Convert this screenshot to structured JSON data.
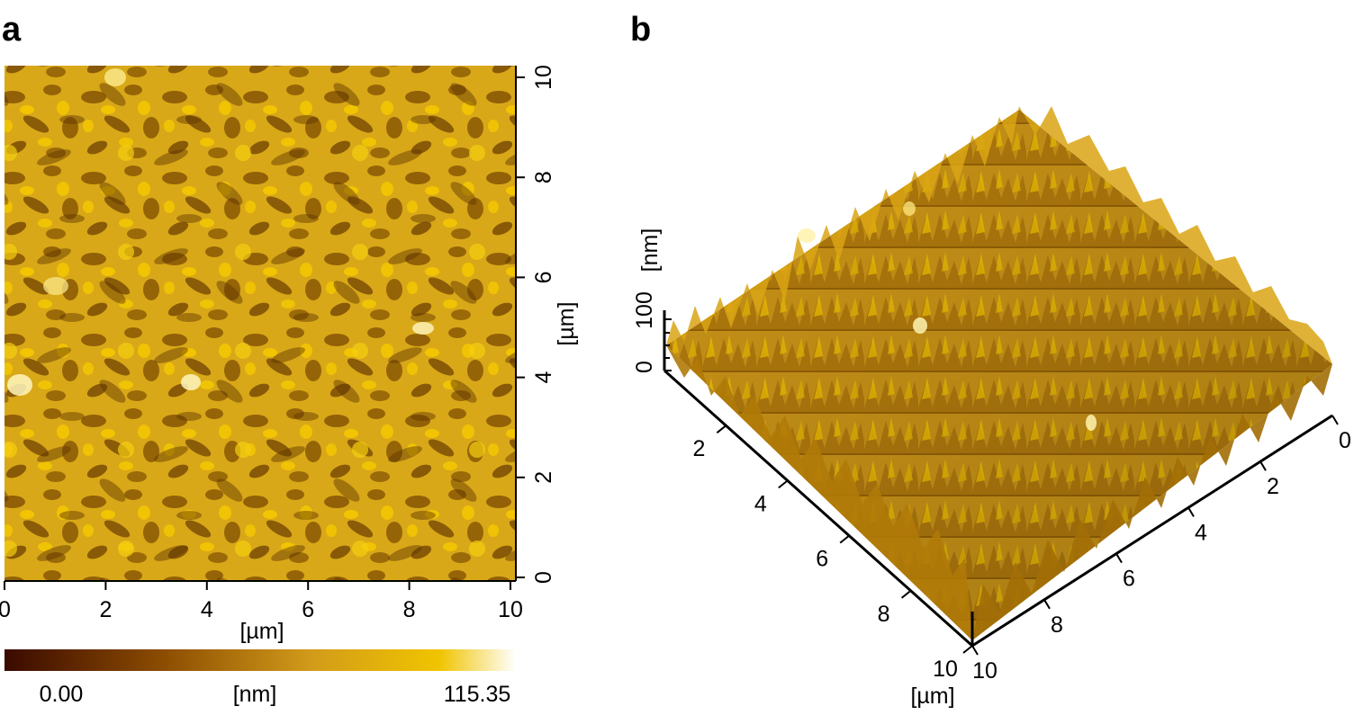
{
  "panels": {
    "a": {
      "label": "a",
      "x_ticks": [
        "0",
        "2",
        "4",
        "6",
        "8",
        "10"
      ],
      "y_ticks": [
        "0",
        "2",
        "4",
        "6",
        "8",
        "10"
      ],
      "x_unit": "[µm]",
      "y_unit": "[µm]",
      "colorbar": {
        "min_label": "0.00",
        "unit": "[nm]",
        "max_label": "115.35",
        "colors": [
          "#3a0a00",
          "#8a4a00",
          "#d29b1a",
          "#f0c400",
          "#ffffff"
        ]
      }
    },
    "b": {
      "label": "b",
      "z_ticks": [
        "0",
        "100"
      ],
      "z_unit": "[nm]",
      "left_axis_ticks": [
        "2",
        "4",
        "6",
        "8",
        "10"
      ],
      "right_axis_ticks": [
        "0",
        "2",
        "4",
        "6",
        "8",
        "10"
      ],
      "axis_unit": "[µm]"
    }
  },
  "colors": {
    "surface_dark": "#6b3c00",
    "surface_mid": "#c8961e",
    "surface_light": "#f2c300"
  }
}
